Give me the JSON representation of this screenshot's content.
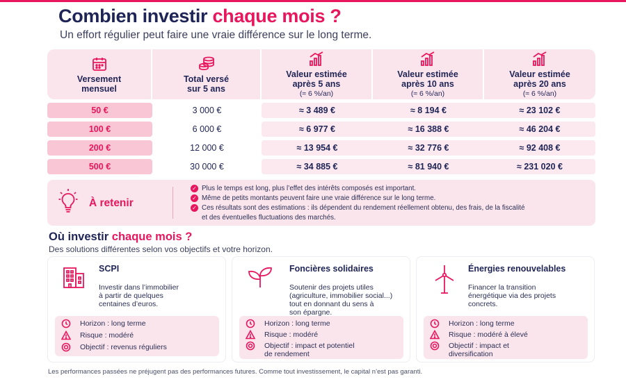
{
  "title": {
    "part1": "Combien investir",
    "part2": "chaque mois ?"
  },
  "subtitle": "Un effort régulier peut faire une vraie différence sur le long terme.",
  "table": {
    "headers": [
      {
        "line1": "Versement",
        "line2": "mensuel",
        "note": "",
        "icon": "calendar-icon"
      },
      {
        "line1": "Total versé",
        "line2": "sur 5 ans",
        "note": "",
        "icon": "coins-icon"
      },
      {
        "line1": "Valeur estimée",
        "line2": "après 5 ans",
        "note": "(≈ 6 %/an)",
        "icon": "growth-chart-icon"
      },
      {
        "line1": "Valeur estimée",
        "line2": "après 10 ans",
        "note": "(≈ 6 %/an)",
        "icon": "growth-chart-icon"
      },
      {
        "line1": "Valeur estimée",
        "line2": "après 20 ans",
        "note": "(≈ 6 %/an)",
        "icon": "growth-chart-icon"
      }
    ],
    "rows": [
      {
        "monthly": "50 €",
        "total": "3 000 €",
        "y5": "≈ 3 489 €",
        "y10": "≈ 8 194 €",
        "y20": "≈ 23 102 €"
      },
      {
        "monthly": "100 €",
        "total": "6 000 €",
        "y5": "≈ 6 977 €",
        "y10": "≈ 16 388 €",
        "y20": "≈ 46 204 €"
      },
      {
        "monthly": "200 €",
        "total": "12 000 €",
        "y5": "≈ 13 954 €",
        "y10": "≈ 32 776 €",
        "y20": "≈ 92 408 €"
      },
      {
        "monthly": "500 €",
        "total": "30 000 €",
        "y5": "≈ 34 885 €",
        "y10": "≈ 81 940 €",
        "y20": "≈ 231 020 €"
      }
    ]
  },
  "retenir": {
    "title": "À retenir",
    "bullets": [
      "Plus le temps est long, plus l’effet des intérêts composés est important.",
      "Même de petits montants peuvent faire une vraie différence sur le long terme.",
      "Ces résultats sont des estimations : ils dépendent du rendement réellement obtenu, des frais, de la fiscalité",
      "et des éventuelles fluctuations des marchés."
    ]
  },
  "section2": {
    "title_part1": "Où investir",
    "title_part2": "chaque mois ?",
    "subtitle": "Des solutions différentes selon vos objectifs et votre horizon."
  },
  "cards": [
    {
      "title": "SCPI",
      "icon": "building-icon",
      "desc": [
        "Investir dans l’immobilier",
        "à partir de quelques",
        "centaines d’euros."
      ],
      "horizon": "Horizon : long terme",
      "risk": "Risque : modéré",
      "objective": [
        "Objectif : revenus réguliers"
      ]
    },
    {
      "title": "Foncières solidaires",
      "icon": "plant-icon",
      "desc": [
        "Soutenir des projets utiles",
        "(agriculture, immobilier social...)",
        "tout en donnant du sens à",
        "son épargne."
      ],
      "horizon": "Horizon : long terme",
      "risk": "Risque : modéré",
      "objective": [
        "Objectif : impact et potentiel",
        "de rendement"
      ]
    },
    {
      "title": "Énergies renouvelables",
      "icon": "wind-turbine-icon",
      "desc": [
        "Financer la transition",
        "énergétique via des projets",
        "concrets."
      ],
      "horizon": "Horizon : long terme",
      "risk": "Risque : modéré à élevé",
      "objective": [
        "Objectif : impact et",
        "diversification"
      ]
    }
  ],
  "footer": "Les performances passées ne préjugent pas des performances futures. Comme tout investissement, le capital n’est pas garanti.",
  "colors": {
    "accent": "#e8175d",
    "navy": "#1f2456",
    "pink_light": "#fbe5ec",
    "pink_mid": "#f8c6d5"
  }
}
